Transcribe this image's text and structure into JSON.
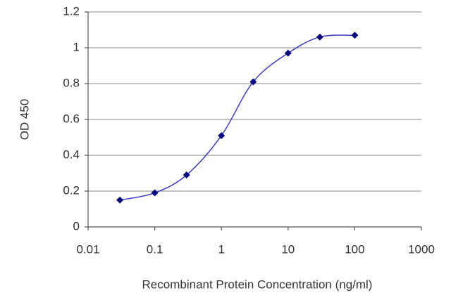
{
  "chart_data": {
    "type": "line",
    "x_label": "Recombinant Protein Concentration (ng/ml)",
    "y_label": "OD 450",
    "x": [
      0.03,
      0.1,
      0.3,
      1,
      3,
      10,
      30,
      100
    ],
    "values": [
      0.15,
      0.19,
      0.29,
      0.51,
      0.81,
      0.97,
      1.06,
      1.07
    ],
    "color": "#3a3acc",
    "marker_color": "#0a0a80",
    "xscale": "log",
    "xlim": [
      0.01,
      1000
    ],
    "xticks": [
      0.01,
      0.1,
      1,
      10,
      100,
      1000
    ],
    "ylim": [
      0,
      1.2
    ],
    "yticks": [
      0,
      0.2,
      0.4,
      0.6,
      0.8,
      1,
      1.2
    ],
    "grid": true
  }
}
